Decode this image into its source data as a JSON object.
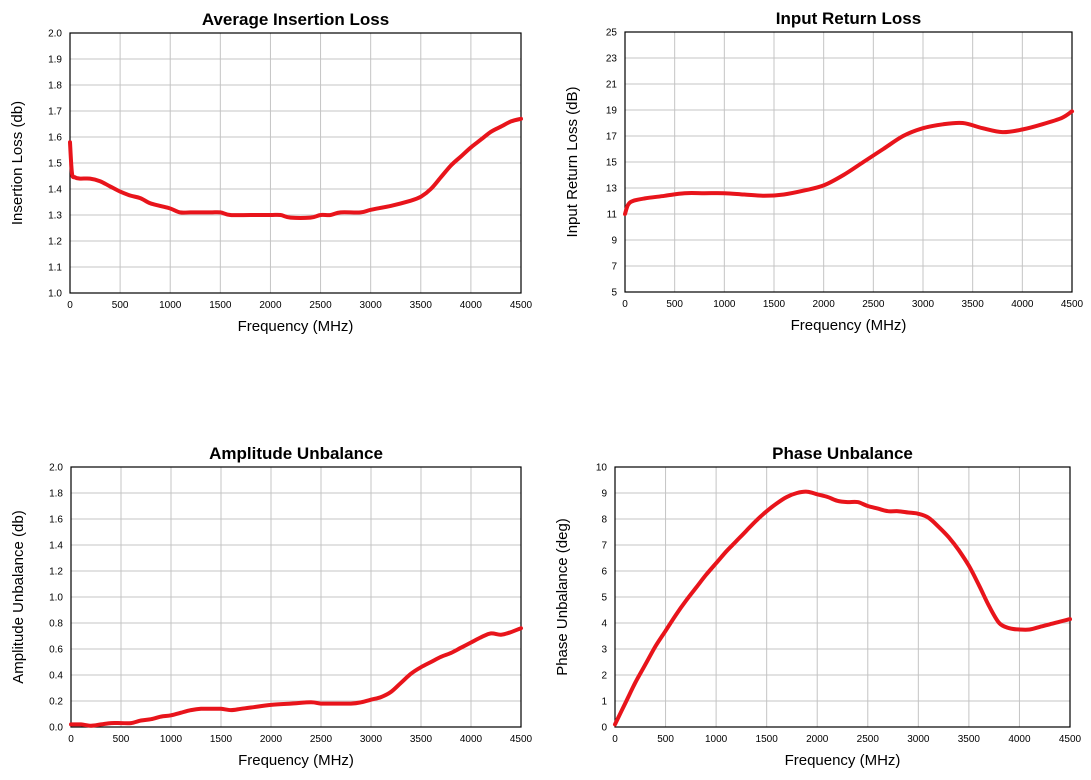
{
  "colors": {
    "line": "#e8141b",
    "grid": "#c4c4c4",
    "frame": "#000000"
  },
  "chart_data": [
    {
      "type": "line",
      "title": "Average Insertion Loss",
      "xlabel": "Frequency (MHz)",
      "ylabel": "Insertion Loss (db)",
      "xlim": [
        0,
        4500
      ],
      "ylim": [
        1.0,
        2.0
      ],
      "xticks": [
        "0",
        "500",
        "1000",
        "1500",
        "2000",
        "2500",
        "3000",
        "3500",
        "4000",
        "4500"
      ],
      "yticks": [
        "1.0",
        "1.1",
        "1.2",
        "1.3",
        "1.4",
        "1.5",
        "1.6",
        "1.7",
        "1.8",
        "1.9",
        "2.0"
      ],
      "grid": true,
      "series": [
        {
          "x": [
            0,
            20,
            50,
            100,
            200,
            300,
            400,
            500,
            600,
            700,
            800,
            900,
            1000,
            1100,
            1200,
            1400,
            1500,
            1600,
            1800,
            2000,
            2100,
            2200,
            2400,
            2500,
            2600,
            2700,
            2900,
            3000,
            3200,
            3400,
            3500,
            3600,
            3700,
            3800,
            3900,
            4000,
            4100,
            4200,
            4300,
            4400,
            4500
          ],
          "y": [
            1.58,
            1.46,
            1.445,
            1.44,
            1.44,
            1.43,
            1.41,
            1.39,
            1.375,
            1.365,
            1.345,
            1.335,
            1.325,
            1.31,
            1.31,
            1.31,
            1.31,
            1.3,
            1.3,
            1.3,
            1.3,
            1.29,
            1.29,
            1.3,
            1.3,
            1.31,
            1.31,
            1.32,
            1.335,
            1.355,
            1.37,
            1.4,
            1.445,
            1.49,
            1.525,
            1.56,
            1.59,
            1.62,
            1.64,
            1.66,
            1.67
          ]
        }
      ]
    },
    {
      "type": "line",
      "title": "Input Return Loss",
      "xlabel": "Frequency (MHz)",
      "ylabel": "Input Return Loss (dB)",
      "xlim": [
        0,
        4500
      ],
      "ylim": [
        5,
        25
      ],
      "xticks": [
        "0",
        "500",
        "1000",
        "1500",
        "2000",
        "2500",
        "3000",
        "3500",
        "4000",
        "4500"
      ],
      "yticks": [
        "5",
        "7",
        "9",
        "11",
        "13",
        "15",
        "17",
        "19",
        "21",
        "23",
        "25"
      ],
      "grid": true,
      "series": [
        {
          "x": [
            0,
            30,
            80,
            200,
            400,
            600,
            800,
            1000,
            1200,
            1400,
            1600,
            1800,
            2000,
            2200,
            2400,
            2600,
            2800,
            3000,
            3200,
            3400,
            3600,
            3800,
            4000,
            4200,
            4400,
            4500
          ],
          "y": [
            11.0,
            11.7,
            12.0,
            12.2,
            12.4,
            12.6,
            12.6,
            12.6,
            12.5,
            12.4,
            12.5,
            12.8,
            13.2,
            14.0,
            15.0,
            16.0,
            17.0,
            17.6,
            17.9,
            18.0,
            17.6,
            17.3,
            17.5,
            17.9,
            18.4,
            18.9
          ]
        }
      ]
    },
    {
      "type": "line",
      "title": "Amplitude Unbalance",
      "xlabel": "Frequency (MHz)",
      "ylabel": "Amplitude Unbalance (db)",
      "xlim": [
        0,
        4500
      ],
      "ylim": [
        0.0,
        2.0
      ],
      "xticks": [
        "0",
        "500",
        "1000",
        "1500",
        "2000",
        "2500",
        "3000",
        "3500",
        "4000",
        "4500"
      ],
      "yticks": [
        "0.0",
        "0.2",
        "0.4",
        "0.6",
        "0.8",
        "1.0",
        "1.2",
        "1.4",
        "1.6",
        "1.8",
        "2.0"
      ],
      "grid": true,
      "series": [
        {
          "x": [
            0,
            100,
            200,
            300,
            400,
            500,
            600,
            700,
            800,
            900,
            1000,
            1100,
            1200,
            1300,
            1400,
            1500,
            1600,
            1700,
            1800,
            2000,
            2200,
            2400,
            2500,
            2600,
            2800,
            2900,
            3000,
            3100,
            3200,
            3300,
            3400,
            3500,
            3600,
            3700,
            3800,
            3900,
            4000,
            4100,
            4200,
            4300,
            4400,
            4500
          ],
          "y": [
            0.02,
            0.02,
            0.01,
            0.02,
            0.03,
            0.03,
            0.03,
            0.05,
            0.06,
            0.08,
            0.09,
            0.11,
            0.13,
            0.14,
            0.14,
            0.14,
            0.13,
            0.14,
            0.15,
            0.17,
            0.18,
            0.19,
            0.18,
            0.18,
            0.18,
            0.19,
            0.21,
            0.23,
            0.27,
            0.34,
            0.41,
            0.46,
            0.5,
            0.54,
            0.57,
            0.61,
            0.65,
            0.69,
            0.72,
            0.71,
            0.73,
            0.76
          ]
        }
      ]
    },
    {
      "type": "line",
      "title": "Phase Unbalance",
      "xlabel": "Frequency (MHz)",
      "ylabel": "Phase Unbalance (deg)",
      "xlim": [
        0,
        4500
      ],
      "ylim": [
        0,
        10
      ],
      "xticks": [
        "0",
        "500",
        "1000",
        "1500",
        "2000",
        "2500",
        "3000",
        "3500",
        "4000",
        "4500"
      ],
      "yticks": [
        "0",
        "1",
        "2",
        "3",
        "4",
        "5",
        "6",
        "7",
        "8",
        "9",
        "10"
      ],
      "grid": true,
      "series": [
        {
          "x": [
            0,
            100,
            200,
            300,
            400,
            500,
            600,
            700,
            800,
            900,
            1000,
            1100,
            1200,
            1300,
            1400,
            1500,
            1600,
            1700,
            1800,
            1900,
            2000,
            2100,
            2200,
            2300,
            2400,
            2500,
            2600,
            2700,
            2800,
            2900,
            3000,
            3100,
            3200,
            3300,
            3400,
            3500,
            3600,
            3700,
            3800,
            3900,
            4000,
            4100,
            4200,
            4300,
            4400,
            4500
          ],
          "y": [
            0.1,
            0.9,
            1.7,
            2.4,
            3.1,
            3.7,
            4.3,
            4.85,
            5.35,
            5.85,
            6.3,
            6.75,
            7.15,
            7.55,
            7.95,
            8.3,
            8.6,
            8.85,
            9.0,
            9.05,
            8.95,
            8.85,
            8.7,
            8.65,
            8.65,
            8.5,
            8.4,
            8.3,
            8.3,
            8.25,
            8.2,
            8.05,
            7.7,
            7.3,
            6.8,
            6.2,
            5.45,
            4.65,
            4.0,
            3.8,
            3.75,
            3.75,
            3.85,
            3.95,
            4.05,
            4.15
          ]
        }
      ]
    }
  ]
}
